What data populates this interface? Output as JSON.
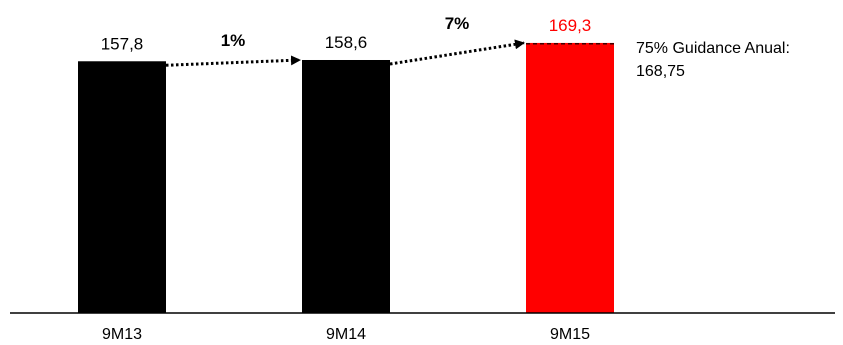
{
  "chart_data": {
    "type": "bar",
    "title": "",
    "xlabel": "",
    "ylabel": "",
    "categories": [
      "9M13",
      "9M14",
      "9M15"
    ],
    "values": [
      157.8,
      158.6,
      169.3
    ],
    "value_labels": [
      "157,8",
      "158,6",
      "169,3"
    ],
    "bar_colors": [
      "#000000",
      "#000000",
      "#ff0000"
    ],
    "value_label_colors": [
      "#000000",
      "#000000",
      "#ff0000"
    ],
    "growth_arrows": [
      {
        "from": "9M13",
        "to": "9M14",
        "label": "1%"
      },
      {
        "from": "9M14",
        "to": "9M15",
        "label": "7%"
      }
    ],
    "guidance": {
      "value": 168.75,
      "label_line1": "75% Guidance Anual:",
      "label_line2": "168,75"
    },
    "grid": false,
    "legend": "none"
  }
}
